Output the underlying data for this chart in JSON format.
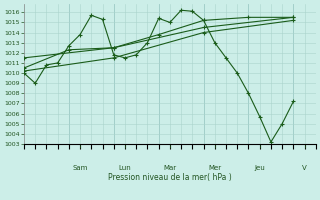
{
  "background_color": "#cceee8",
  "grid_color": "#aad4cc",
  "line_color": "#1a5c1a",
  "marker_color": "#1a5c1a",
  "xlabel": "Pression niveau de la mer( hPa )",
  "ylim": [
    1003,
    1016.8
  ],
  "xlim": [
    0,
    13.0
  ],
  "yticks": [
    1003,
    1004,
    1005,
    1006,
    1007,
    1008,
    1009,
    1010,
    1011,
    1012,
    1013,
    1014,
    1015,
    1016
  ],
  "day_labels": [
    "Sam",
    "Lun",
    "Mar",
    "Mer",
    "Jeu",
    "V"
  ],
  "day_positions": [
    2.5,
    4.5,
    6.5,
    8.5,
    10.5,
    12.5
  ],
  "xtick_minor": 0.5,
  "series0_x": [
    0,
    0.5,
    1.0,
    1.5,
    2.0,
    2.5,
    3.0,
    3.5,
    4.0,
    4.5,
    5.0,
    5.5,
    6.0,
    6.5,
    7.0,
    7.5,
    8.0,
    8.5,
    9.0,
    9.5,
    10.0,
    10.5,
    11.0,
    11.5,
    12.0
  ],
  "series0_y": [
    1010.0,
    1009.0,
    1010.8,
    1011.0,
    1012.7,
    1013.8,
    1015.7,
    1015.3,
    1011.8,
    1011.5,
    1011.8,
    1013.0,
    1015.4,
    1015.0,
    1016.2,
    1016.1,
    1015.2,
    1013.0,
    1011.5,
    1010.0,
    1008.0,
    1005.7,
    1003.2,
    1005.0,
    1007.2
  ],
  "series1_x": [
    0,
    2.0,
    4.0,
    6.0,
    8.0,
    10.0,
    12.0
  ],
  "series1_y": [
    1010.5,
    1012.3,
    1012.5,
    1013.8,
    1015.2,
    1015.5,
    1015.5
  ],
  "series2_x": [
    0,
    4.0,
    8.0,
    12.0
  ],
  "series2_y": [
    1011.5,
    1012.5,
    1014.5,
    1015.5
  ],
  "series3_x": [
    0,
    4.0,
    8.0,
    12.0
  ],
  "series3_y": [
    1010.2,
    1011.5,
    1014.0,
    1015.2
  ]
}
